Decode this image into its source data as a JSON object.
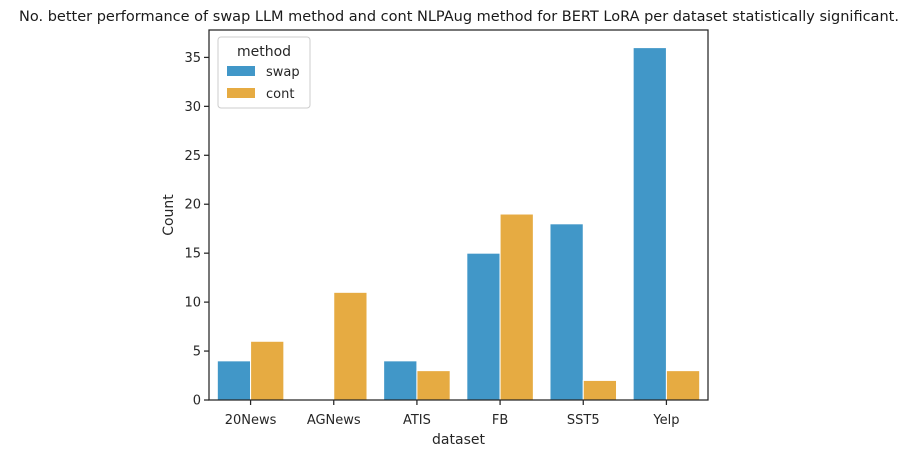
{
  "chart_data": {
    "type": "bar",
    "title": "No. better performance of swap LLM method and cont NLPAug method for BERT LoRA per dataset statistically significant.",
    "xlabel": "dataset",
    "ylabel": "Count",
    "categories": [
      "20News",
      "AGNews",
      "ATIS",
      "FB",
      "SST5",
      "Yelp"
    ],
    "series": [
      {
        "name": "swap",
        "values": [
          4,
          0,
          4,
          15,
          18,
          36
        ],
        "color": "#4197c8"
      },
      {
        "name": "cont",
        "values": [
          6,
          11,
          3,
          19,
          2,
          3
        ],
        "color": "#e6ab42"
      }
    ],
    "ylim": [
      0,
      37.8
    ],
    "yticks": [
      "0",
      "5",
      "10",
      "15",
      "20",
      "25",
      "30",
      "35"
    ],
    "legend": {
      "title": "method",
      "placement": "top-left"
    },
    "grid": false
  }
}
